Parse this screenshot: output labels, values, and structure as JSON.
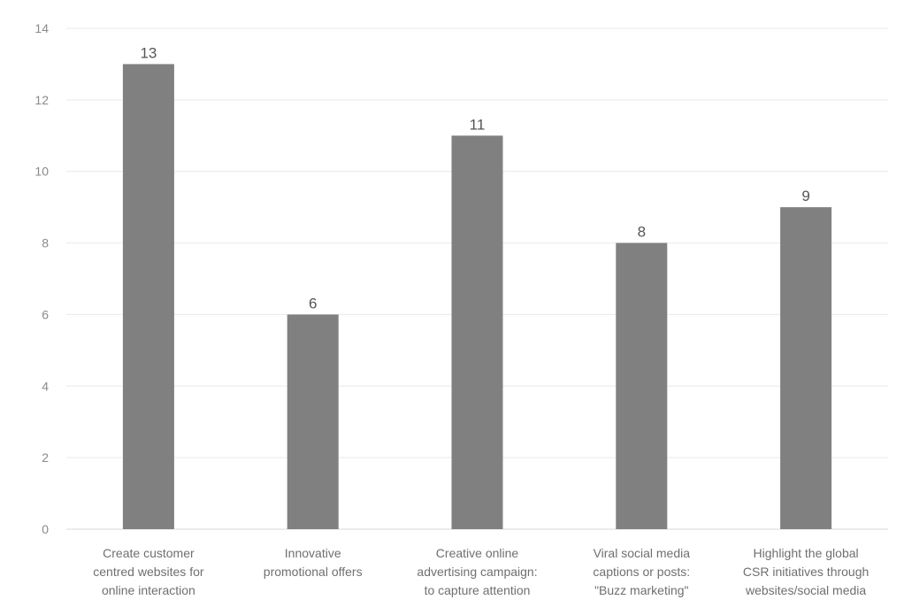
{
  "chart_data": {
    "type": "bar",
    "categories": [
      "Create customer centred websites for online interaction",
      "Innovative promotional offers",
      "Creative online advertising campaign: to capture attention",
      "Viral social media captions or posts: \"Buzz marketing\"",
      "Highlight the global CSR initiatives through websites/social media"
    ],
    "category_lines": [
      [
        "Create customer",
        "centred websites for",
        "online interaction"
      ],
      [
        "Innovative",
        "promotional offers"
      ],
      [
        "Creative online",
        "advertising campaign:",
        "to capture attention"
      ],
      [
        "Viral social media",
        "captions or posts:",
        "\"Buzz marketing\""
      ],
      [
        "Highlight the global",
        "CSR initiatives through",
        "websites/social media"
      ]
    ],
    "values": [
      13,
      6,
      11,
      8,
      9
    ],
    "title": "",
    "xlabel": "",
    "ylabel": "",
    "ylim": [
      0,
      14
    ],
    "yticks": [
      0,
      2,
      4,
      6,
      8,
      10,
      12,
      14
    ],
    "grid": true,
    "legend": "none",
    "bar_color": "#808080",
    "data_labels": true
  }
}
